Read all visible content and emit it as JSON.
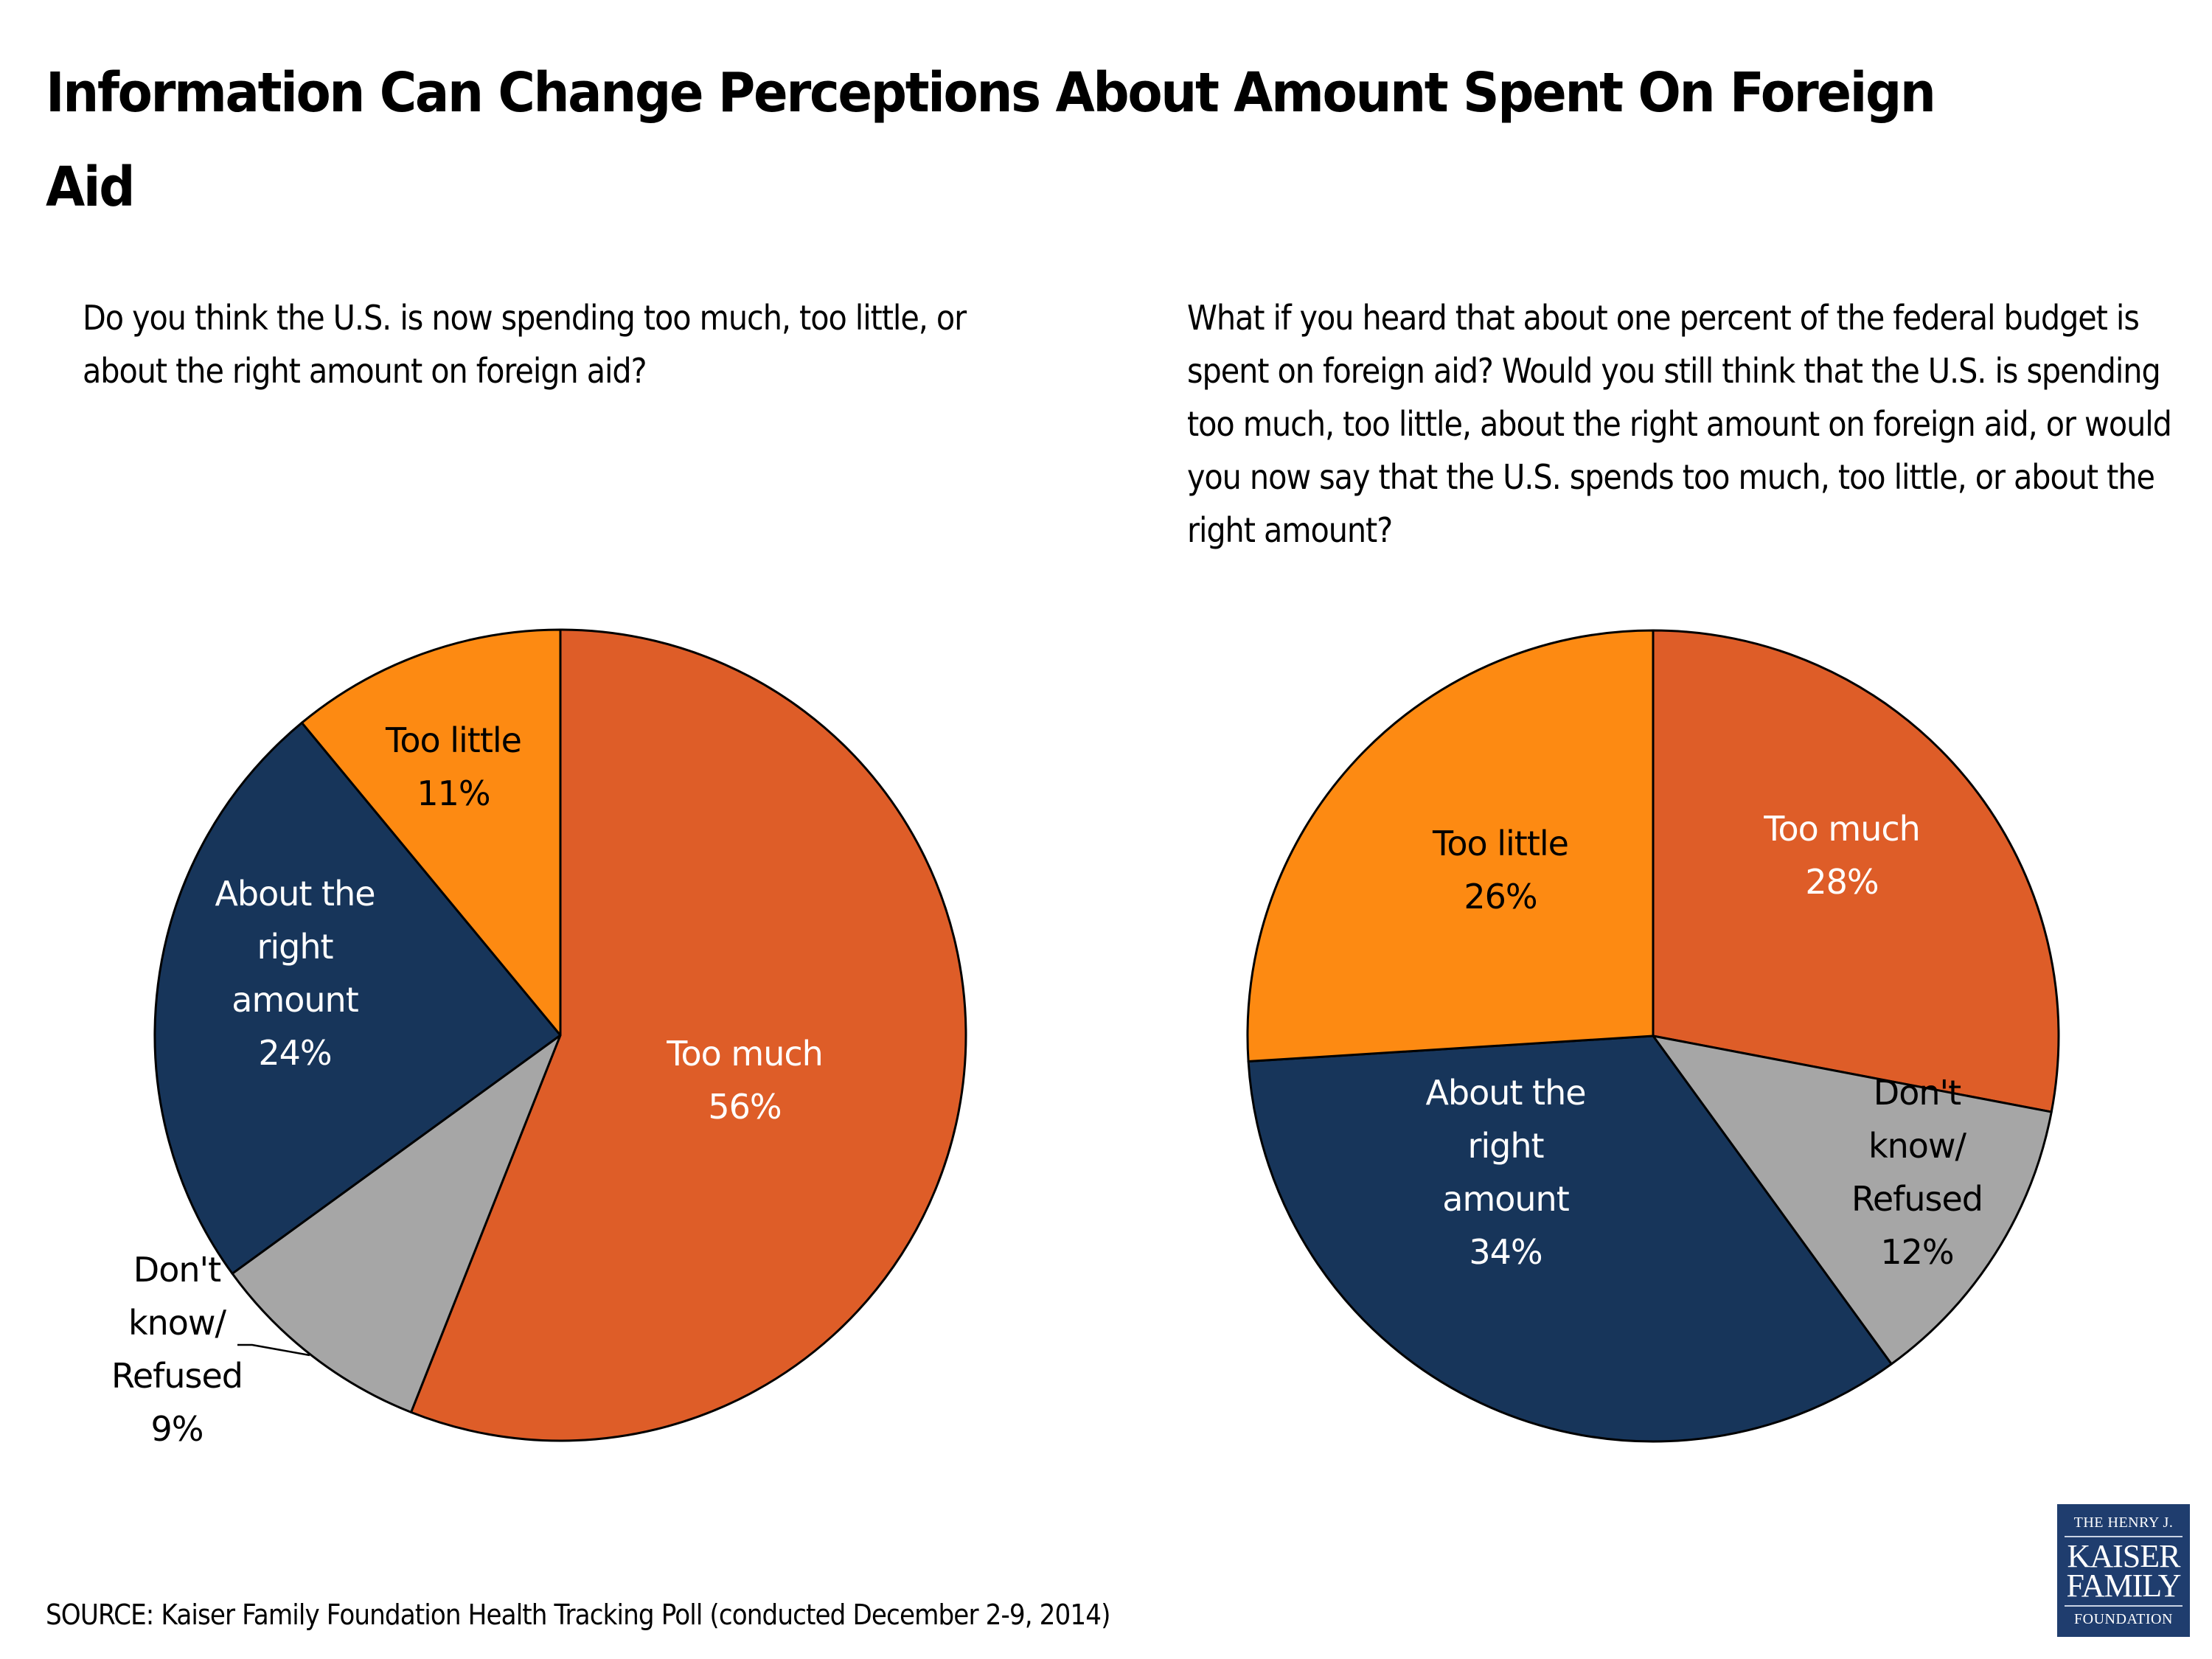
{
  "title": "Information Can Change Perceptions About Amount Spent On Foreign Aid",
  "source": "SOURCE: Kaiser Family Foundation Health Tracking Poll (conducted December 2-9, 2014)",
  "logo": {
    "line1": "THE HENRY J.",
    "line2": "KAISER",
    "line3": "FAMILY",
    "line4": "FOUNDATION"
  },
  "colors": {
    "too_much": "#DE5D28",
    "too_little": "#FD8A12",
    "about_right": "#17355A",
    "dont_know": "#A6A6A6"
  },
  "chart_data": [
    {
      "type": "pie",
      "title": "Do you think the U.S. is now spending too much, too little, or about the right amount on foreign aid?",
      "start": "12 o'clock, clockwise",
      "slices": [
        {
          "key": "too_much",
          "label_lines": [
            "Too much"
          ],
          "value": 56,
          "value_label": "56%",
          "label_color": "#ffffff"
        },
        {
          "key": "dont_know",
          "label_lines": [
            "Don't",
            "know/",
            "Refused"
          ],
          "value": 9,
          "value_label": "9%",
          "label_color": "#000000",
          "label_outside": true
        },
        {
          "key": "about_right",
          "label_lines": [
            "About the",
            "right",
            "amount"
          ],
          "value": 24,
          "value_label": "24%",
          "label_color": "#ffffff"
        },
        {
          "key": "too_little",
          "label_lines": [
            "Too little"
          ],
          "value": 11,
          "value_label": "11%",
          "label_color": "#000000"
        }
      ]
    },
    {
      "type": "pie",
      "title": "What if you heard that about one percent of the federal budget is spent on foreign aid? Would you still think that the U.S. is spending too much, too little, about the right amount on foreign aid, or would you now say that the U.S. spends too much, too little, or about the right amount?",
      "start": "12 o'clock, clockwise",
      "slices": [
        {
          "key": "too_much",
          "label_lines": [
            "Too much"
          ],
          "value": 28,
          "value_label": "28%",
          "label_color": "#ffffff"
        },
        {
          "key": "dont_know",
          "label_lines": [
            "Don't",
            "know/",
            "Refused"
          ],
          "value": 12,
          "value_label": "12%",
          "label_color": "#000000"
        },
        {
          "key": "about_right",
          "label_lines": [
            "About the",
            "right",
            "amount"
          ],
          "value": 34,
          "value_label": "34%",
          "label_color": "#ffffff"
        },
        {
          "key": "too_little",
          "label_lines": [
            "Too little"
          ],
          "value": 26,
          "value_label": "26%",
          "label_color": "#000000"
        }
      ]
    }
  ]
}
